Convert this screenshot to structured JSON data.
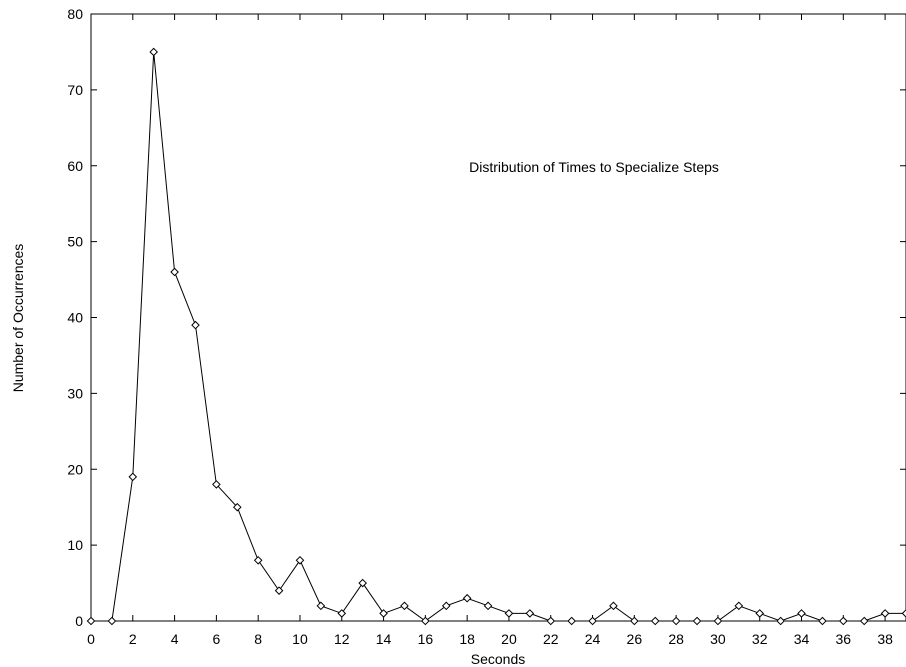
{
  "chart_data": {
    "type": "line",
    "title": "Distribution of Times to Specialize Steps",
    "xlabel": "Seconds",
    "ylabel": "Number of Occurrences",
    "xlim": [
      0,
      39
    ],
    "ylim": [
      0,
      80
    ],
    "xticks": [
      0,
      2,
      4,
      6,
      8,
      10,
      12,
      14,
      16,
      18,
      20,
      22,
      24,
      26,
      28,
      30,
      32,
      34,
      36,
      38
    ],
    "yticks": [
      0,
      10,
      20,
      30,
      40,
      50,
      60,
      70,
      80
    ],
    "grid": false,
    "marker": "diamond",
    "series": [
      {
        "x": [
          0,
          1,
          2,
          3,
          4,
          5,
          6,
          7,
          8,
          9,
          10,
          11,
          12,
          13,
          14,
          15,
          16,
          17,
          18,
          19,
          20,
          21,
          22,
          23,
          24,
          25,
          26,
          27,
          28,
          29,
          30,
          31,
          32,
          33,
          34,
          35,
          36,
          37,
          38,
          39
        ],
        "values": [
          0,
          0,
          19,
          75,
          46,
          39,
          18,
          15,
          8,
          4,
          8,
          2,
          1,
          5,
          1,
          2,
          0,
          2,
          3,
          2,
          1,
          1,
          0,
          0,
          0,
          2,
          0,
          0,
          0,
          0,
          0,
          2,
          1,
          0,
          1,
          0,
          0,
          0,
          1,
          1
        ]
      }
    ]
  }
}
